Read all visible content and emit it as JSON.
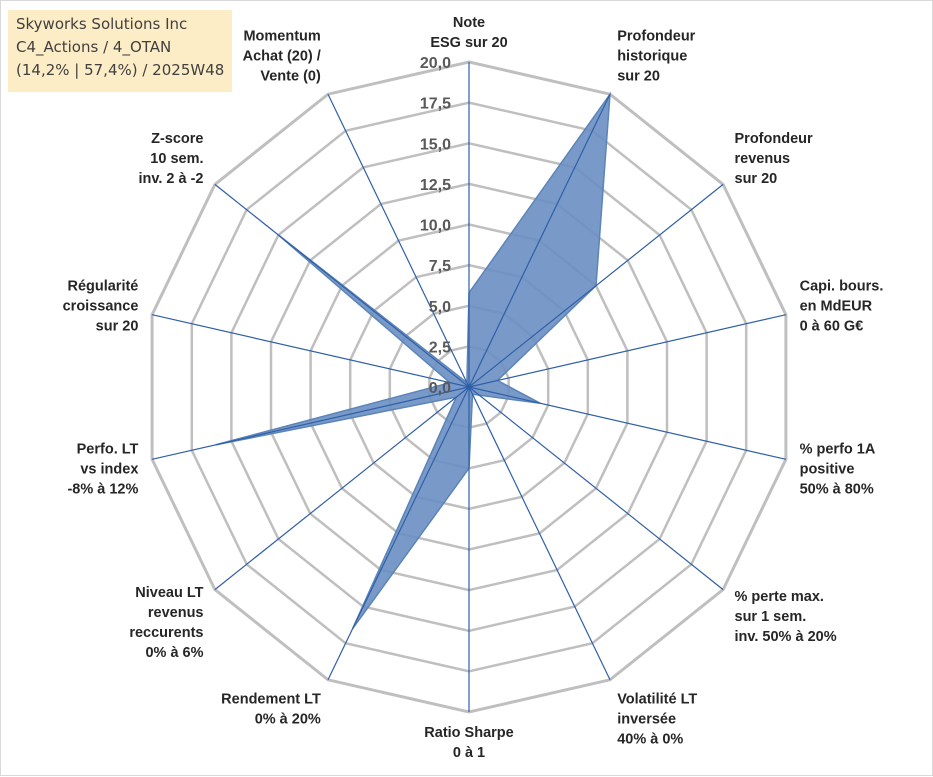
{
  "info": {
    "line1": "Skyworks Solutions Inc",
    "line2": "C4_Actions / 4_OTAN",
    "line3": "(14,2% | 57,4%) / 2025W48"
  },
  "chart_data": {
    "type": "radar",
    "rlim": [
      0,
      20
    ],
    "grid": true,
    "tick_labels": [
      "0,0",
      "2,5",
      "5,0",
      "7,5",
      "10,0",
      "12,5",
      "15,0",
      "17,5",
      "20,0"
    ],
    "axes": [
      {
        "lines": [
          "Note",
          "ESG sur 20"
        ]
      },
      {
        "lines": [
          "Profondeur",
          "historique",
          "sur 20"
        ]
      },
      {
        "lines": [
          "Profondeur",
          "revenus",
          "sur 20"
        ]
      },
      {
        "lines": [
          "Capi. bours.",
          "en MdEUR",
          "0 à 60 G€"
        ]
      },
      {
        "lines": [
          "% perfo 1A",
          "positive",
          "50% à 80%"
        ]
      },
      {
        "lines": [
          "% perte max.",
          "sur 1 sem.",
          "inv. 50% à 20%"
        ]
      },
      {
        "lines": [
          "Volatilité LT",
          "inversée",
          "40% à 0%"
        ]
      },
      {
        "lines": [
          "Ratio Sharpe",
          "0 à 1"
        ]
      },
      {
        "lines": [
          "Rendement LT",
          "0% à 20%"
        ]
      },
      {
        "lines": [
          "Niveau LT",
          "revenus",
          "reccurents",
          "0% à 6%"
        ]
      },
      {
        "lines": [
          "Perfo. LT",
          "vs index",
          "-8% à 12%"
        ]
      },
      {
        "lines": [
          "Régularité",
          "croissance",
          "sur 20"
        ]
      },
      {
        "lines": [
          "Z-score",
          "10 sem.",
          "inv. 2 à -2"
        ]
      },
      {
        "lines": [
          "Momentum",
          "Achat (20) /",
          "Vente (0)"
        ]
      }
    ],
    "values": [
      5.8,
      20.0,
      10.0,
      1.8,
      4.5,
      0.8,
      0.5,
      5.0,
      16.5,
      1.0,
      16.0,
      1.2,
      15.0,
      0.3
    ],
    "series_color": "#5b84b8",
    "series_fill": "#6a8fc2",
    "spoke_color": "#2f5fa8",
    "grid_color": "#bfbfbf"
  }
}
